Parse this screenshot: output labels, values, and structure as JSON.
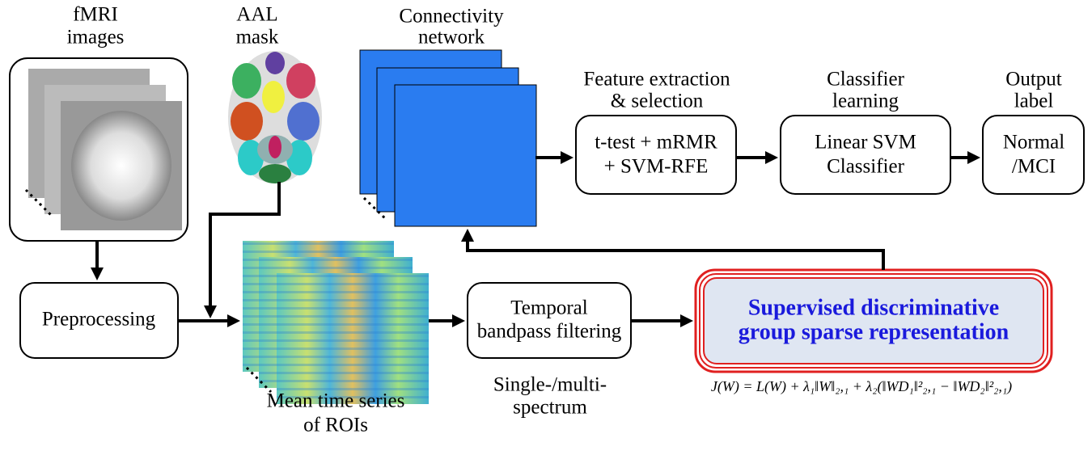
{
  "labels": {
    "fmri": [
      "fMRI",
      "images"
    ],
    "aal": [
      "AAL",
      "mask"
    ],
    "connectivity": [
      "Connectivity",
      "network"
    ],
    "feature": [
      "Feature extraction",
      "& selection"
    ],
    "classifier": [
      "Classifier",
      "learning"
    ],
    "output": [
      "Output",
      "label"
    ],
    "timeseries": [
      "Mean time series",
      "of ROIs"
    ],
    "spectrum": [
      "Single-/multi-",
      "spectrum"
    ]
  },
  "boxes": {
    "feature": [
      "t-test + mRMR",
      "+ SVM-RFE"
    ],
    "svm": [
      "Linear SVM",
      "Classifier"
    ],
    "output": [
      "Normal",
      "/MCI"
    ],
    "preprocessing": [
      "Preprocessing"
    ],
    "temporal": [
      "Temporal",
      "bandpass filtering"
    ],
    "supervised": [
      "Supervised discriminative",
      "group sparse representation"
    ]
  },
  "formula": "J(W) = L(W) + λ₁‖W‖₂,₁ + λ₂(‖WD₁‖²₂,₁ − ‖WD₂‖²₂,₁)"
}
